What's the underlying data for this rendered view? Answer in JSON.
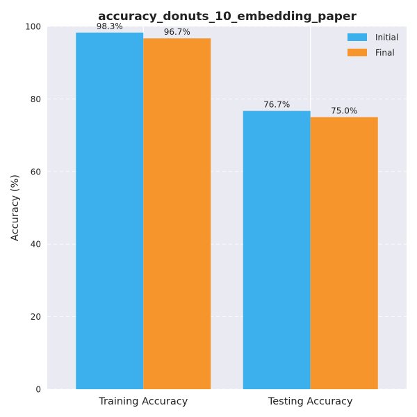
{
  "chart_data": {
    "type": "bar",
    "title": "accuracy_donuts_10_embedding_paper",
    "xlabel": "",
    "ylabel": "Accuracy (%)",
    "ylim": [
      0,
      100
    ],
    "yticks": [
      0,
      20,
      40,
      60,
      80,
      100
    ],
    "categories": [
      "Training Accuracy",
      "Testing Accuracy"
    ],
    "series": [
      {
        "name": "Initial",
        "values": [
          98.3,
          76.7
        ],
        "labels": [
          "98.3%",
          "76.7%"
        ],
        "color": "#3cb0ed"
      },
      {
        "name": "Final",
        "values": [
          96.7,
          75.0
        ],
        "labels": [
          "96.7%",
          "75.0%"
        ],
        "color": "#f7952d"
      }
    ],
    "grid": true,
    "legend_position": "top-right",
    "background_color": "#eaeaf2"
  }
}
